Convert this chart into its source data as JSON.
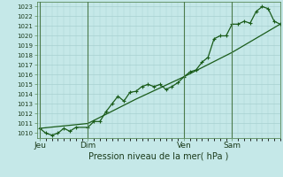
{
  "background_color": "#c5e8e8",
  "grid_color": "#a8d0d0",
  "line_color": "#1a5c1a",
  "marker_color": "#1a5c1a",
  "xlabel": "Pression niveau de la mer( hPa )",
  "ylim": [
    1009.5,
    1023.5
  ],
  "yticks": [
    1010,
    1011,
    1012,
    1013,
    1014,
    1015,
    1016,
    1017,
    1018,
    1019,
    1020,
    1021,
    1022,
    1023
  ],
  "xtick_labels": [
    "Jeu",
    "Dim",
    "Ven",
    "Sam"
  ],
  "xtick_positions": [
    0,
    16,
    48,
    64
  ],
  "vline_positions": [
    0,
    16,
    48,
    64
  ],
  "xlim": [
    -1,
    80
  ],
  "series1_x": [
    0,
    2,
    4,
    6,
    8,
    10,
    12,
    16,
    18,
    20,
    22,
    24,
    26,
    28,
    30,
    32,
    34,
    36,
    38,
    40,
    42,
    44,
    46,
    48,
    50,
    52,
    54,
    56,
    58,
    60,
    62,
    64,
    66,
    68,
    70,
    72,
    74,
    76,
    78,
    80
  ],
  "series1_y": [
    1010.5,
    1010.0,
    1009.8,
    1010.0,
    1010.5,
    1010.2,
    1010.6,
    1010.6,
    1011.2,
    1011.2,
    1012.2,
    1013.0,
    1013.8,
    1013.3,
    1014.2,
    1014.3,
    1014.8,
    1015.0,
    1014.8,
    1015.0,
    1014.5,
    1014.8,
    1015.2,
    1015.8,
    1016.3,
    1016.5,
    1017.3,
    1017.8,
    1019.7,
    1020.0,
    1020.0,
    1021.2,
    1021.2,
    1021.5,
    1021.3,
    1022.5,
    1023.0,
    1022.8,
    1021.5,
    1021.2
  ],
  "series2_x": [
    0,
    16,
    32,
    48,
    64,
    80
  ],
  "series2_y": [
    1010.5,
    1011.0,
    1013.5,
    1015.8,
    1018.3,
    1021.2
  ]
}
